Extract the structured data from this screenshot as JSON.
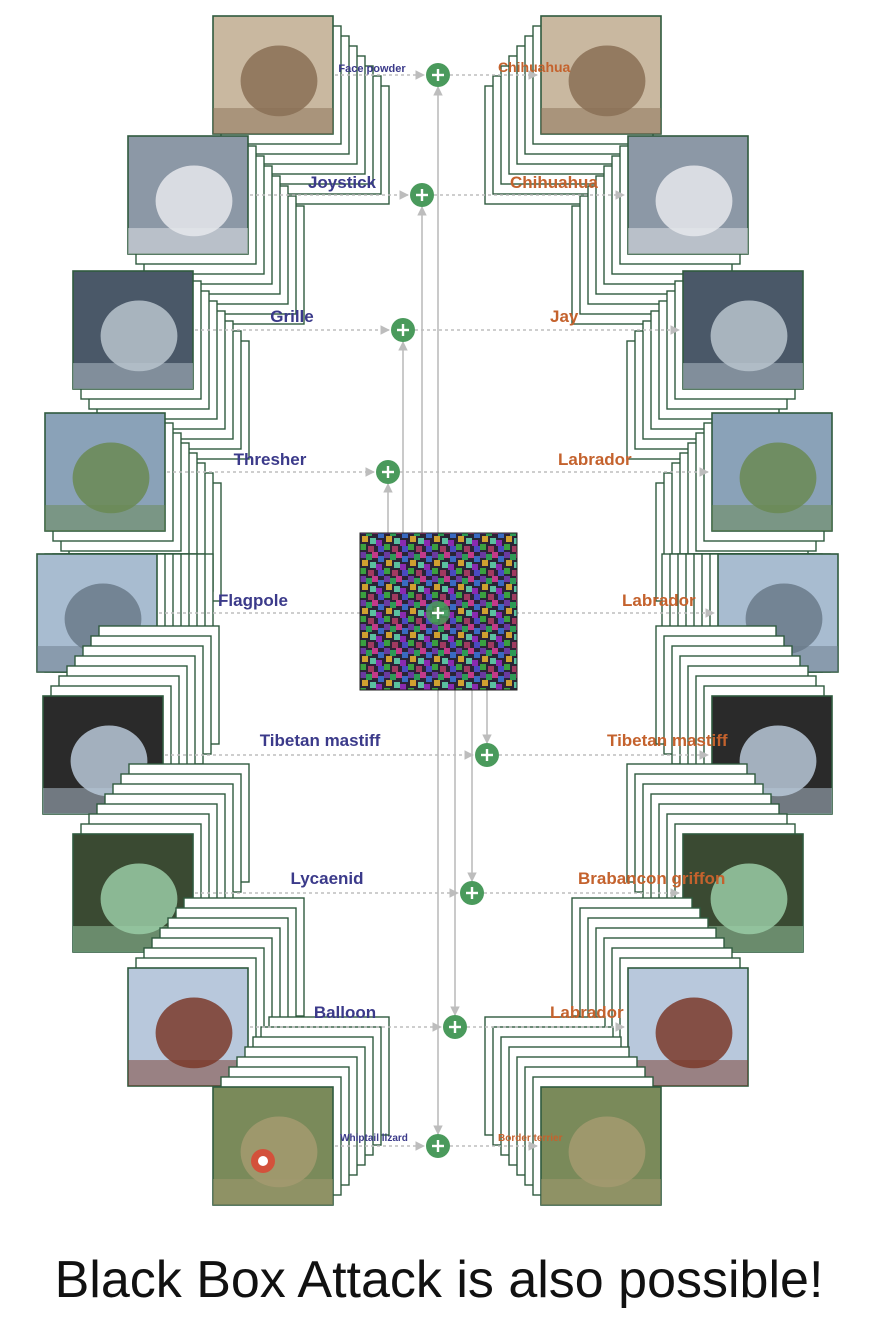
{
  "caption": "Black Box Attack is also possible!",
  "rows": [
    {
      "source": "Face powder",
      "target": "Chihuahua"
    },
    {
      "source": "Joystick",
      "target": "Chihuahua"
    },
    {
      "source": "Grille",
      "target": "Jay"
    },
    {
      "source": "Thresher",
      "target": "Labrador"
    },
    {
      "source": "Flagpole",
      "target": "Labrador"
    },
    {
      "source": "Tibetan mastiff",
      "target": "Tibetan mastiff"
    },
    {
      "source": "Lycaenid",
      "target": "Brabancon griffon"
    },
    {
      "source": "Balloon",
      "target": "Labrador"
    },
    {
      "source": "Whiptail lizard",
      "target": "Border terrier"
    }
  ],
  "icons": {
    "plus": "plus-circle-icon",
    "noise": "adversarial-noise-image"
  },
  "colors": {
    "frame": "#2f5a3e",
    "plus": "#4a9a5c",
    "left_label": "#3b3a8a",
    "right_label": "#c4622d",
    "arrow": "#bdbdbd"
  }
}
